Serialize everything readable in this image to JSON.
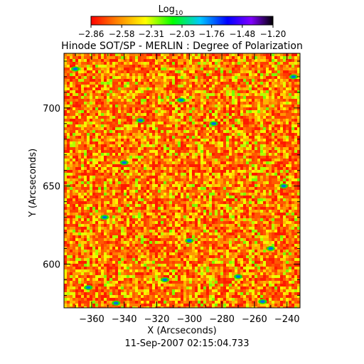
{
  "chart_data": {
    "type": "heatmap",
    "title": "Hinode SOT/SP - MERLIN : Degree of Polarization",
    "xlabel": "X (Arcseconds)",
    "ylabel": "Y (Arcseconds)",
    "footer": "11-Sep-2007 02:15:04.733",
    "xlim": [
      -377,
      -232
    ],
    "ylim": [
      572,
      735
    ],
    "x_ticks": [
      -360,
      -340,
      -320,
      -300,
      -280,
      -260,
      -240
    ],
    "y_ticks": [
      600,
      650,
      700
    ],
    "x_tick_labels": [
      "−360",
      "−340",
      "−320",
      "−300",
      "−280",
      "−260",
      "−240"
    ],
    "y_tick_labels": [
      "600",
      "650",
      "700"
    ],
    "colorbar": {
      "label": "Log",
      "label_sub": "10",
      "range": [
        -2.86,
        -1.2
      ],
      "ticks": [
        -2.86,
        -2.58,
        -2.31,
        -2.03,
        -1.76,
        -1.48,
        -1.2
      ],
      "tick_labels": [
        "−2.86",
        "−2.58",
        "−2.31",
        "−2.03",
        "−1.76",
        "−1.48",
        "−1.20"
      ],
      "colors": [
        "#ff0000",
        "#ff8000",
        "#ffff00",
        "#00ff00",
        "#00c8ff",
        "#0000ff",
        "#8000ff",
        "#000000"
      ]
    },
    "field_description": "noise-like degree of polarization map, predominantly red/orange with yellow-green mottling and scattered blue/teal patches",
    "dominant_value_range": [
      -2.86,
      -2.45
    ],
    "patches": [
      {
        "x": -362,
        "y": 585
      },
      {
        "x": -300,
        "y": 615
      },
      {
        "x": -330,
        "y": 692
      },
      {
        "x": -352,
        "y": 630
      },
      {
        "x": -270,
        "y": 592
      },
      {
        "x": -305,
        "y": 705
      },
      {
        "x": -236,
        "y": 720
      },
      {
        "x": -340,
        "y": 665
      },
      {
        "x": -250,
        "y": 610
      },
      {
        "x": -315,
        "y": 590
      },
      {
        "x": -285,
        "y": 690
      },
      {
        "x": -370,
        "y": 725
      },
      {
        "x": -345,
        "y": 575
      },
      {
        "x": -255,
        "y": 576
      },
      {
        "x": -242,
        "y": 650
      }
    ]
  }
}
